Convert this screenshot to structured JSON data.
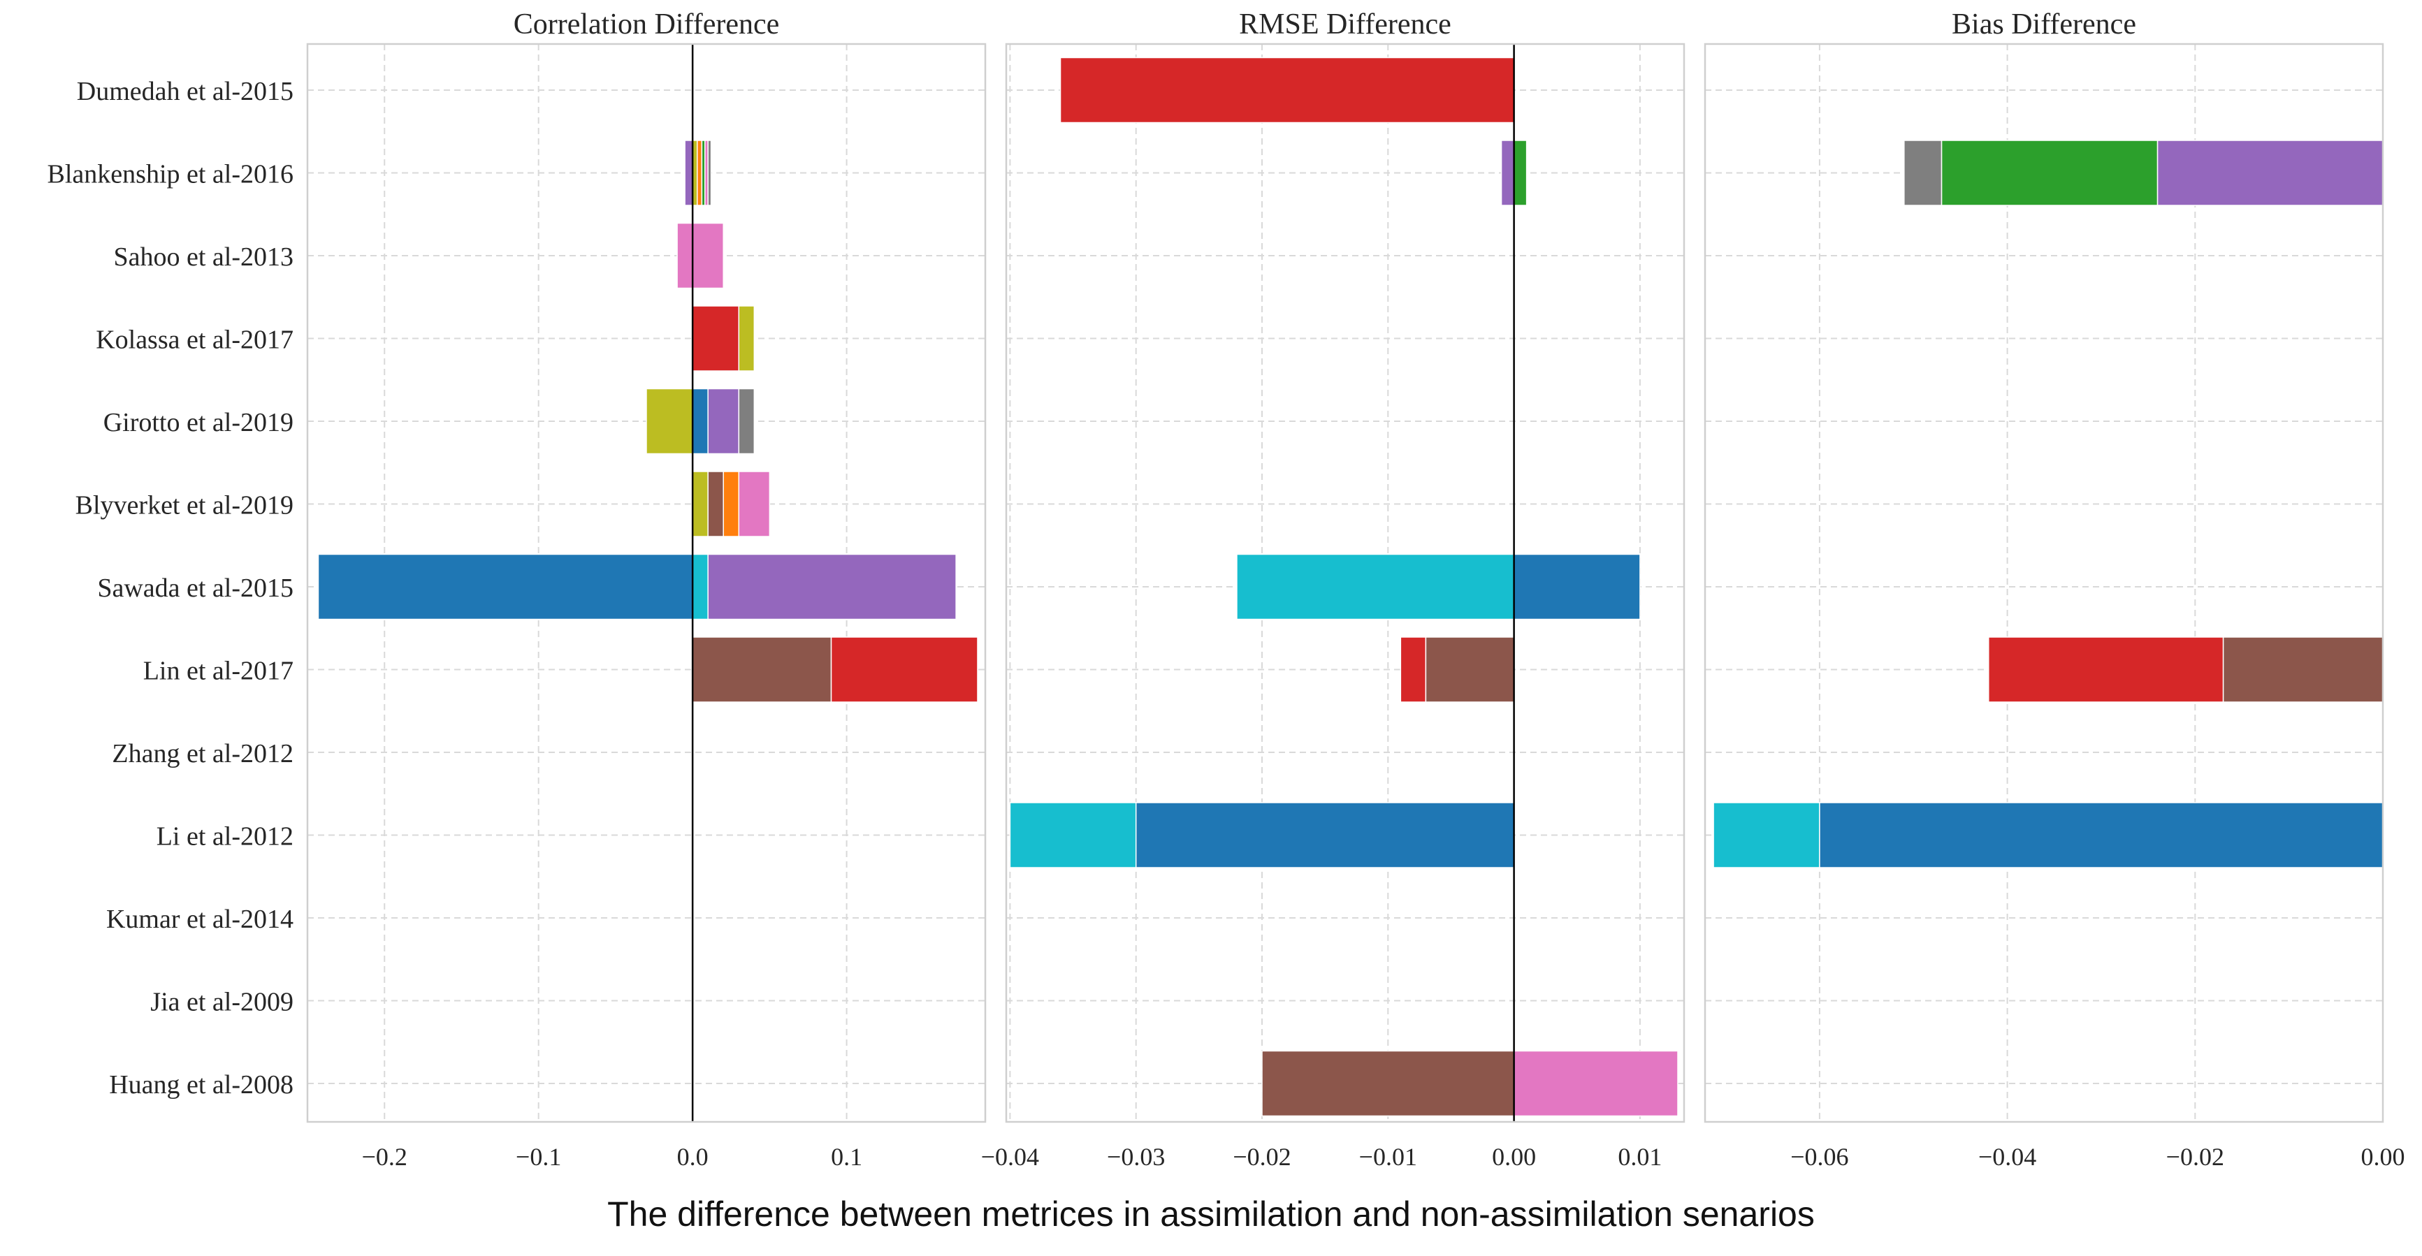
{
  "colors": {
    "blue": "#1f77b4",
    "orange": "#ff7f0e",
    "green": "#2ca02c",
    "red": "#d62728",
    "purple": "#9467bd",
    "brown": "#8c564b",
    "pink": "#e377c2",
    "gray": "#7f7f7f",
    "olive": "#bcbd22",
    "cyan": "#17becf",
    "grid": "#d9d9d9",
    "spine": "#cfcfcf"
  },
  "chart_data": {
    "type": "bar",
    "orientation": "horizontal",
    "stacked": true,
    "categories": [
      "Dumedah et al-2015",
      "Blankenship et al-2016",
      "Sahoo et al-2013",
      "Kolassa et al-2017",
      "Girotto et al-2019",
      "Blyverket et al-2019",
      "Sawada et al-2015",
      "Lin et al-2017",
      "Zhang et al-2012",
      "Li et al-2012",
      "Kumar et al-2014",
      "Jia et al-2009",
      "Huang et al-2008"
    ],
    "xlabel": "The difference between metrices in assimilation and non-assimilation senarios",
    "grid": true,
    "panels": [
      {
        "title": "Correlation Difference",
        "xlim": [
          -0.25,
          0.19
        ],
        "xticks": [
          -0.2,
          -0.1,
          0.0,
          0.1
        ],
        "tick_labels": [
          "−0.2",
          "−0.1",
          "0.0",
          "0.1"
        ],
        "zero_line": true,
        "segments": [
          {
            "row": 1,
            "start": -0.005,
            "end": 0,
            "color": "purple"
          },
          {
            "row": 1,
            "start": 0,
            "end": 0.003,
            "color": "olive"
          },
          {
            "row": 1,
            "start": 0.003,
            "end": 0.006,
            "color": "orange"
          },
          {
            "row": 1,
            "start": 0.006,
            "end": 0.008,
            "color": "green"
          },
          {
            "row": 1,
            "start": 0.008,
            "end": 0.01,
            "color": "pink"
          },
          {
            "row": 1,
            "start": 0.01,
            "end": 0.012,
            "color": "gray"
          },
          {
            "row": 2,
            "start": -0.01,
            "end": 0,
            "color": "purple"
          },
          {
            "row": 2,
            "start": -0.01,
            "end": 0.02,
            "color": "pink"
          },
          {
            "row": 3,
            "start": 0,
            "end": 0.03,
            "color": "red"
          },
          {
            "row": 3,
            "start": 0.03,
            "end": 0.04,
            "color": "olive"
          },
          {
            "row": 4,
            "start": -0.03,
            "end": 0,
            "color": "olive"
          },
          {
            "row": 4,
            "start": 0,
            "end": 0.01,
            "color": "blue"
          },
          {
            "row": 4,
            "start": 0.01,
            "end": 0.03,
            "color": "purple"
          },
          {
            "row": 4,
            "start": 0.03,
            "end": 0.04,
            "color": "gray"
          },
          {
            "row": 5,
            "start": 0,
            "end": 0.01,
            "color": "olive"
          },
          {
            "row": 5,
            "start": 0.01,
            "end": 0.02,
            "color": "brown"
          },
          {
            "row": 5,
            "start": 0.02,
            "end": 0.03,
            "color": "orange"
          },
          {
            "row": 5,
            "start": 0.03,
            "end": 0.05,
            "color": "pink"
          },
          {
            "row": 6,
            "start": -0.243,
            "end": 0,
            "color": "blue"
          },
          {
            "row": 6,
            "start": 0,
            "end": 0.01,
            "color": "cyan"
          },
          {
            "row": 6,
            "start": 0.01,
            "end": 0.171,
            "color": "purple"
          },
          {
            "row": 7,
            "start": 0,
            "end": 0.09,
            "color": "brown"
          },
          {
            "row": 7,
            "start": 0.09,
            "end": 0.185,
            "color": "red"
          }
        ]
      },
      {
        "title": "RMSE Difference",
        "xlim": [
          -0.0403,
          0.0135
        ],
        "xticks": [
          -0.04,
          -0.03,
          -0.02,
          -0.01,
          0.0,
          0.01
        ],
        "tick_labels": [
          "−0.04",
          "−0.03",
          "−0.02",
          "−0.01",
          "0.00",
          "0.01"
        ],
        "zero_line": true,
        "segments": [
          {
            "row": 0,
            "start": -0.036,
            "end": 0,
            "color": "red"
          },
          {
            "row": 1,
            "start": -0.001,
            "end": 0,
            "color": "purple"
          },
          {
            "row": 1,
            "start": 0,
            "end": 0.001,
            "color": "green"
          },
          {
            "row": 6,
            "start": -0.022,
            "end": 0,
            "color": "cyan"
          },
          {
            "row": 6,
            "start": 0,
            "end": 0.01,
            "color": "blue"
          },
          {
            "row": 7,
            "start": -0.009,
            "end": -0.007,
            "color": "red"
          },
          {
            "row": 7,
            "start": -0.007,
            "end": 0,
            "color": "brown"
          },
          {
            "row": 9,
            "start": -0.04,
            "end": -0.03,
            "color": "cyan"
          },
          {
            "row": 9,
            "start": -0.03,
            "end": 0,
            "color": "blue"
          },
          {
            "row": 12,
            "start": -0.02,
            "end": 0,
            "color": "brown"
          },
          {
            "row": 12,
            "start": 0,
            "end": 0.013,
            "color": "pink"
          }
        ]
      },
      {
        "title": "Bias Difference",
        "xlim": [
          -0.0722,
          0.0
        ],
        "xticks": [
          -0.06,
          -0.04,
          -0.02,
          0.0
        ],
        "tick_labels": [
          "−0.06",
          "−0.04",
          "−0.02",
          "0.00"
        ],
        "zero_line": false,
        "segments": [
          {
            "row": 1,
            "start": -0.051,
            "end": -0.047,
            "color": "gray"
          },
          {
            "row": 1,
            "start": -0.047,
            "end": -0.024,
            "color": "green"
          },
          {
            "row": 1,
            "start": -0.024,
            "end": 0,
            "color": "purple"
          },
          {
            "row": 7,
            "start": -0.042,
            "end": -0.017,
            "color": "red"
          },
          {
            "row": 7,
            "start": -0.017,
            "end": 0,
            "color": "brown"
          },
          {
            "row": 9,
            "start": -0.0713,
            "end": -0.06,
            "color": "cyan"
          },
          {
            "row": 9,
            "start": -0.06,
            "end": 0,
            "color": "blue"
          }
        ]
      }
    ]
  }
}
